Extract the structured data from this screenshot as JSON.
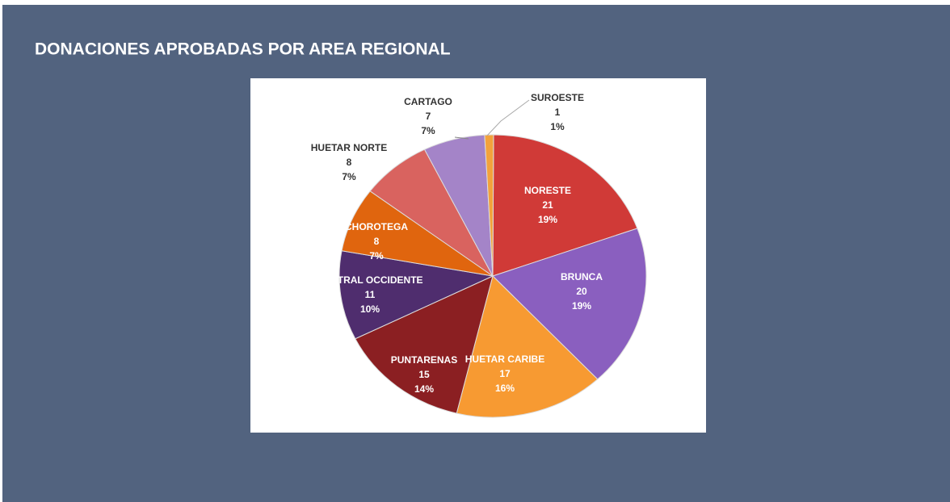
{
  "chart_data": {
    "type": "pie",
    "title": "DONACIONES APROBADAS POR AREA REGIONAL",
    "categories": [
      "NORESTE",
      "BRUNCA",
      "HUETAR CARIBE",
      "PUNTARENAS",
      "CENTRAL OCCIDENTE",
      "CHOROTEGA",
      "HUETAR NORTE",
      "CARTAGO",
      "SUROESTE"
    ],
    "values": [
      21,
      20,
      17,
      15,
      11,
      8,
      8,
      7,
      1
    ],
    "percent_labels": [
      "19%",
      "19%",
      "16%",
      "14%",
      "10%",
      "7%",
      "7%",
      "7%",
      "1%"
    ],
    "colors": [
      "#d03a37",
      "#8a5fbf",
      "#f79a32",
      "#8b1f22",
      "#4f2d6e",
      "#e0650e",
      "#d9635f",
      "#a484c8",
      "#f3a23c"
    ]
  }
}
